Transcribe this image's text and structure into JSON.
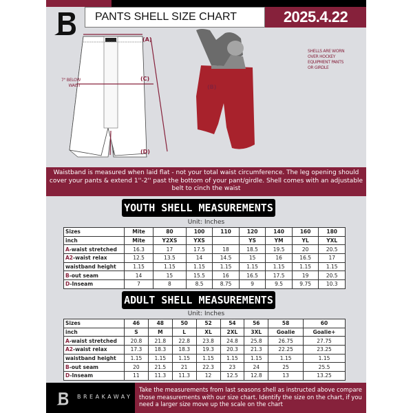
{
  "header": {
    "title": "PANTS SHELL SIZE CHART",
    "date": "2025.4.22"
  },
  "diagram": {
    "label_a": "(A)",
    "label_b": "(B)",
    "label_c": "(C)",
    "label_d": "(D)",
    "below_waist": "7'' BELOW WAIST",
    "worn_note": "SHELLS ARE WORN OVER HOCKEY EQUIPMENT PANTS OR GIRDLE"
  },
  "info": "Waistband is measured when laid flat - not your total waist circumference. The leg opening should cover your pants & extend 1''-2'' past the bottom of your pant/girdle. Shell comes with an adjustable belt to cinch the waist",
  "youth": {
    "title": "YOUTH SHELL MEASUREMENTS",
    "unit": "Unit: Inches",
    "rows": [
      {
        "label": "Sizes",
        "values": [
          "Mite",
          "80",
          "100",
          "110",
          "120",
          "140",
          "160",
          "180"
        ]
      },
      {
        "label": "inch",
        "values": [
          "Mite",
          "Y2XS",
          "YXS",
          "",
          "YS",
          "YM",
          "YL",
          "YXL"
        ]
      },
      {
        "prefix": "A",
        "label": "-waist stretched",
        "values": [
          "16.3",
          "17",
          "17.5",
          "18",
          "18.5",
          "19.5",
          "20",
          "20.5"
        ]
      },
      {
        "prefix": "A2",
        "label": "-waist relax",
        "values": [
          "12.5",
          "13.5",
          "14",
          "14.5",
          "15",
          "16",
          "16.5",
          "17"
        ]
      },
      {
        "label": "waistband height",
        "values": [
          "1.15",
          "1.15",
          "1.15",
          "1.15",
          "1.15",
          "1.15",
          "1.15",
          "1.15"
        ]
      },
      {
        "prefix": "B",
        "label": "-out seam",
        "values": [
          "14",
          "15",
          "15.5",
          "16",
          "16.5",
          "17.5",
          "19",
          "20.5"
        ]
      },
      {
        "prefix": "D",
        "label": "-Inseam",
        "values": [
          "7",
          "8",
          "8.5",
          "8.75",
          "9",
          "9.5",
          "9.75",
          "10.3"
        ]
      }
    ]
  },
  "adult": {
    "title": "ADULT SHELL MEASUREMENTS",
    "unit": "Unit: Inches",
    "rows": [
      {
        "label": "Sizes",
        "values": [
          "46",
          "48",
          "50",
          "52",
          "54",
          "56",
          "58",
          "60"
        ]
      },
      {
        "label": "inch",
        "values": [
          "S",
          "M",
          "L",
          "XL",
          "2XL",
          "3XL",
          "Goalie",
          "Goalie+"
        ]
      },
      {
        "prefix": "A",
        "label": "-waist stretched",
        "values": [
          "20.8",
          "21.8",
          "22.8",
          "23.8",
          "24.8",
          "25.8",
          "26.75",
          "27.75"
        ]
      },
      {
        "prefix": "A2",
        "label": "-waist relax",
        "values": [
          "17.3",
          "18.3",
          "18.3",
          "19.3",
          "20.3",
          "21.3",
          "22.25",
          "23.25"
        ]
      },
      {
        "label": "waistband height",
        "values": [
          "1.15",
          "1.15",
          "1.15",
          "1.15",
          "1.15",
          "1.15",
          "1.15",
          "1.15"
        ]
      },
      {
        "prefix": "B",
        "label": "-out seam",
        "values": [
          "20",
          "21.5",
          "21",
          "22.3",
          "23",
          "24",
          "25",
          "25.5"
        ]
      },
      {
        "prefix": "D",
        "label": "-Inseam",
        "values": [
          "11",
          "11.3",
          "11.3",
          "12",
          "12.5",
          "12.8",
          "13",
          "13.25"
        ]
      }
    ]
  },
  "footer": {
    "brand": "BREAKAWAY",
    "text": "Take the measurements from last seasons shell as instructed above compare those measurements  with our size chart. Identify the size on the chart, if you need a larger size move up the scale on the chart"
  },
  "colors": {
    "accent": "#86213b",
    "background": "#dcdde1"
  }
}
